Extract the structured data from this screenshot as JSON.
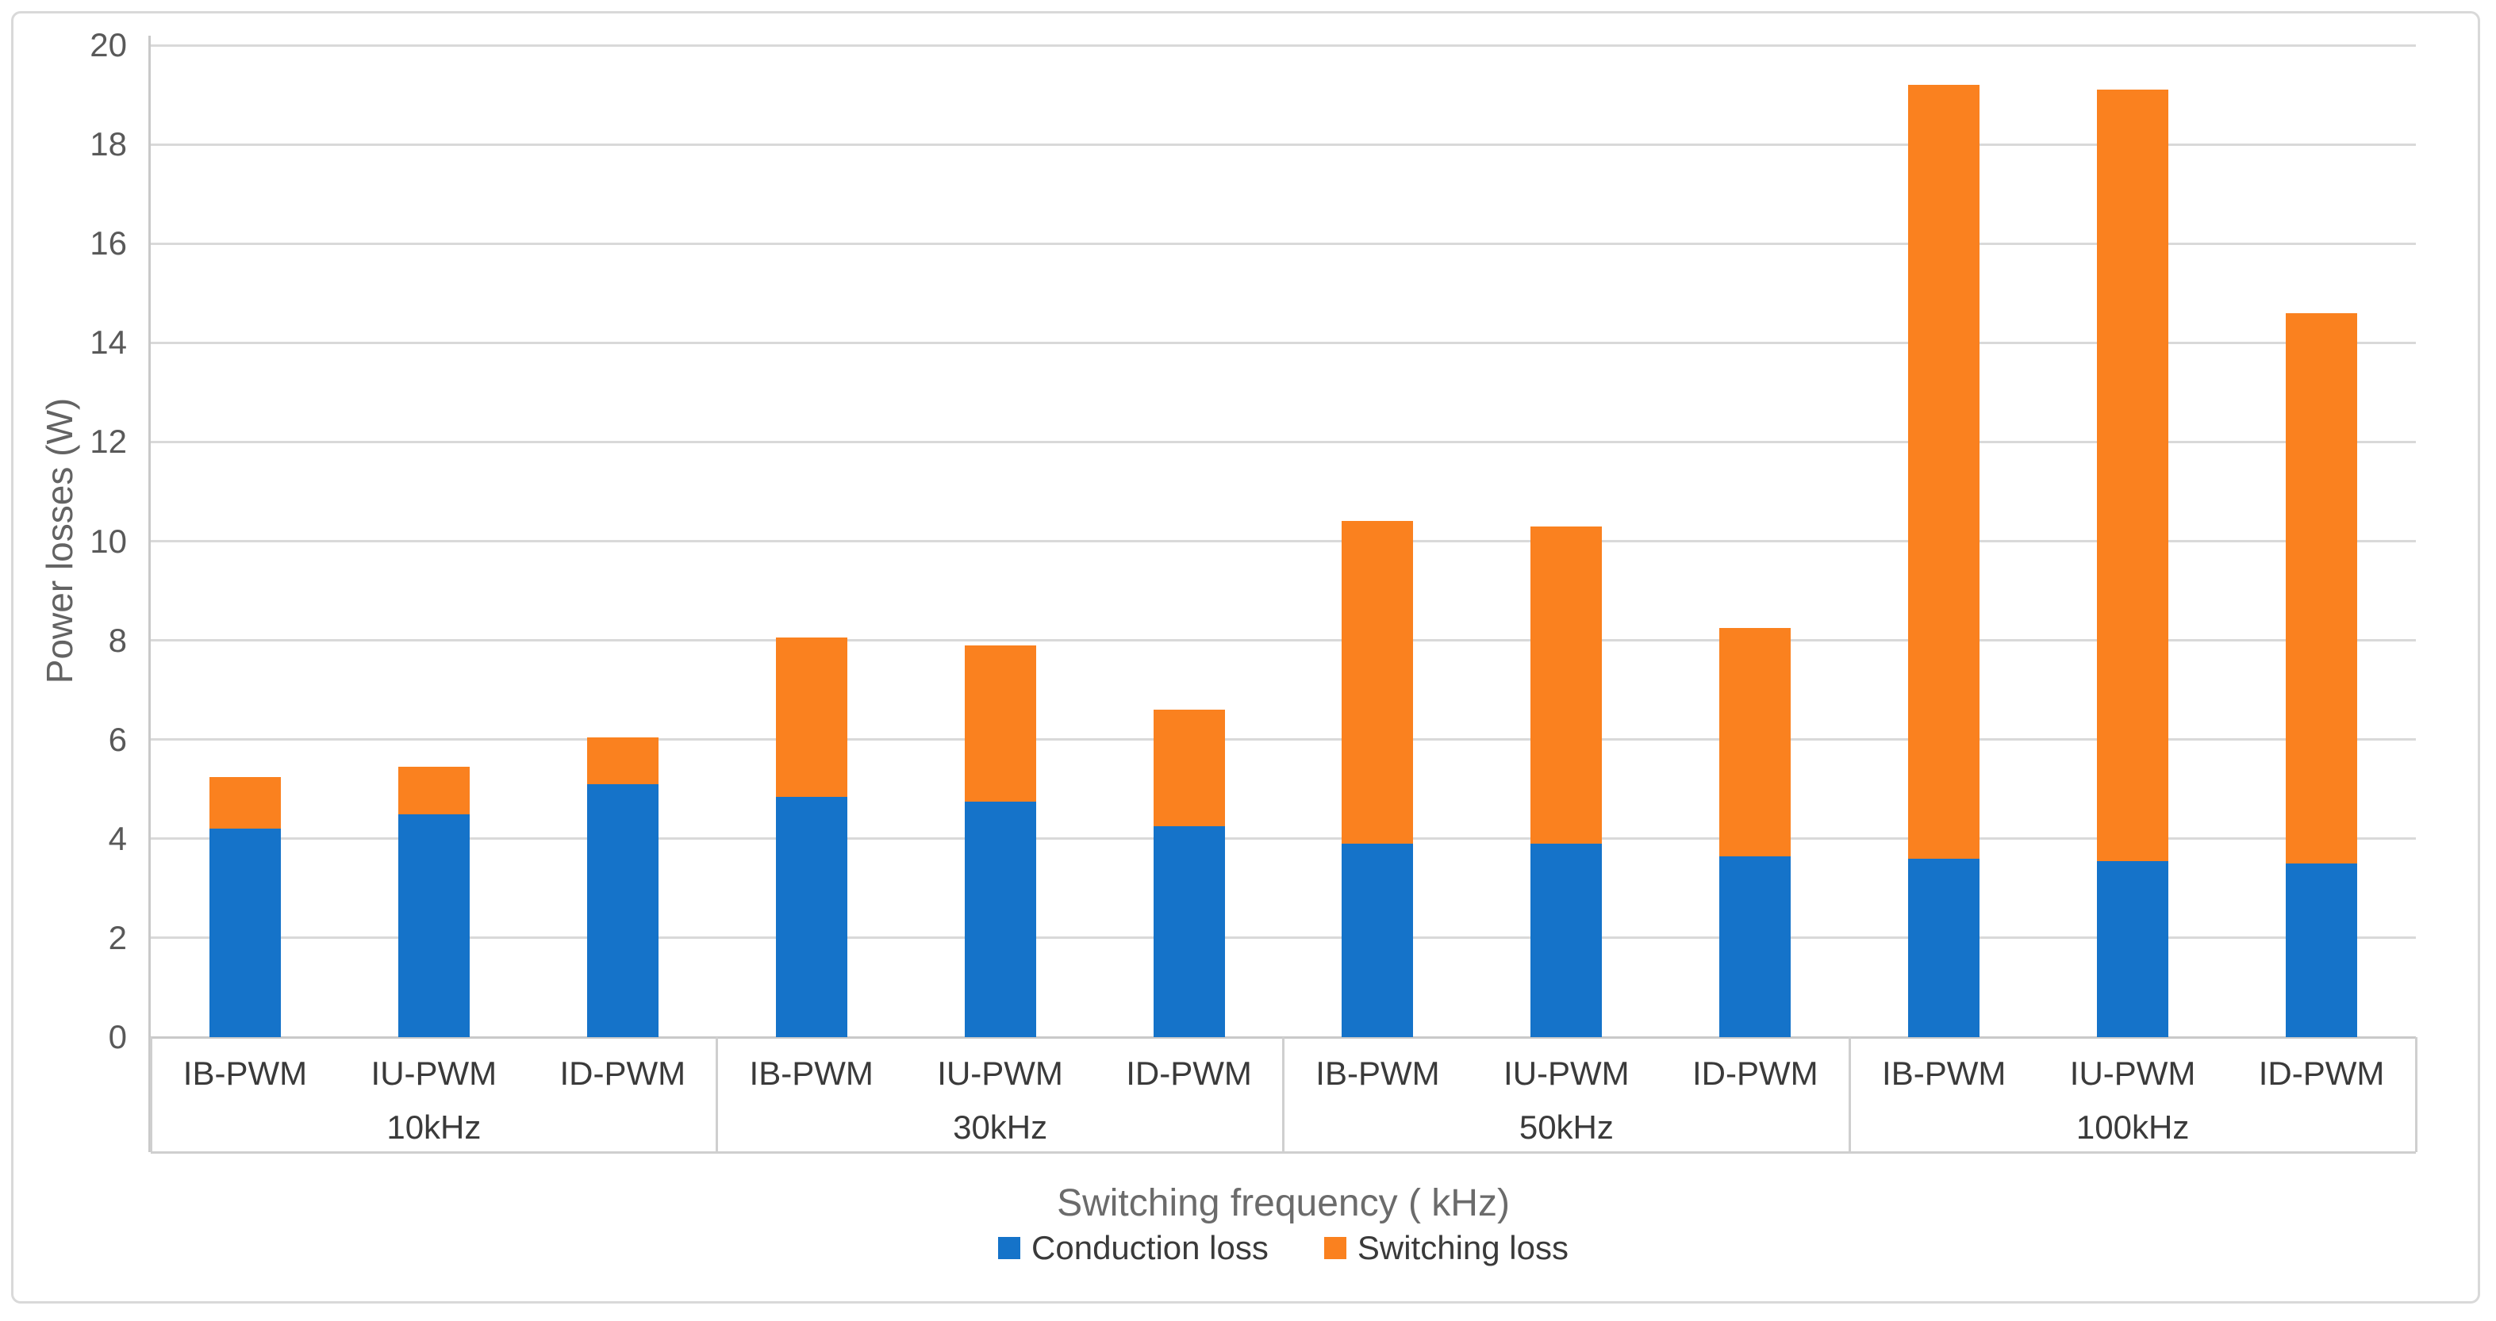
{
  "chart_data": {
    "type": "bar",
    "stacked": true,
    "title": "",
    "ylabel": "Power losses (W)",
    "xlabel": "Switching frequency ( kHz)",
    "ylim": [
      0,
      20
    ],
    "yticks": [
      0,
      2,
      4,
      6,
      8,
      10,
      12,
      14,
      16,
      18,
      20
    ],
    "grid": true,
    "legend_position": "bottom",
    "groups": [
      {
        "label": "10kHz"
      },
      {
        "label": "30kHz"
      },
      {
        "label": "50kHz"
      },
      {
        "label": "100kHz"
      }
    ],
    "categories": [
      "IB-PWM",
      "IU-PWM",
      "ID-PWM",
      "IB-PWM",
      "IU-PWM",
      "ID-PWM",
      "IB-PWM",
      "IU-PWM",
      "ID-PWM",
      "IB-PWM",
      "IU-PWM",
      "ID-PWM"
    ],
    "series": [
      {
        "name": "Conduction loss",
        "color": "#1573C9",
        "values": [
          4.2,
          4.5,
          5.1,
          4.85,
          4.75,
          4.25,
          3.9,
          3.9,
          3.65,
          3.6,
          3.55,
          3.5
        ]
      },
      {
        "name": "Switching loss",
        "color": "#FA811F",
        "values": [
          1.05,
          0.95,
          0.95,
          3.2,
          3.15,
          2.35,
          6.5,
          6.4,
          4.6,
          15.6,
          15.55,
          11.1
        ]
      }
    ],
    "stack_totals": [
      5.25,
      5.45,
      6.05,
      8.05,
      7.9,
      6.6,
      10.4,
      10.3,
      8.25,
      19.2,
      19.1,
      14.6
    ]
  },
  "styles": {
    "grid_color": "#D9D9D9",
    "axis_color": "#C9C9C9",
    "separator_color": "#CFCFCF",
    "tick_text_color": "#595959",
    "category_text_color": "#3A3A3A",
    "axis_title_color": "#6B6B6B",
    "frame_color": "#D9D9D9",
    "background": "#FFFFFF"
  }
}
